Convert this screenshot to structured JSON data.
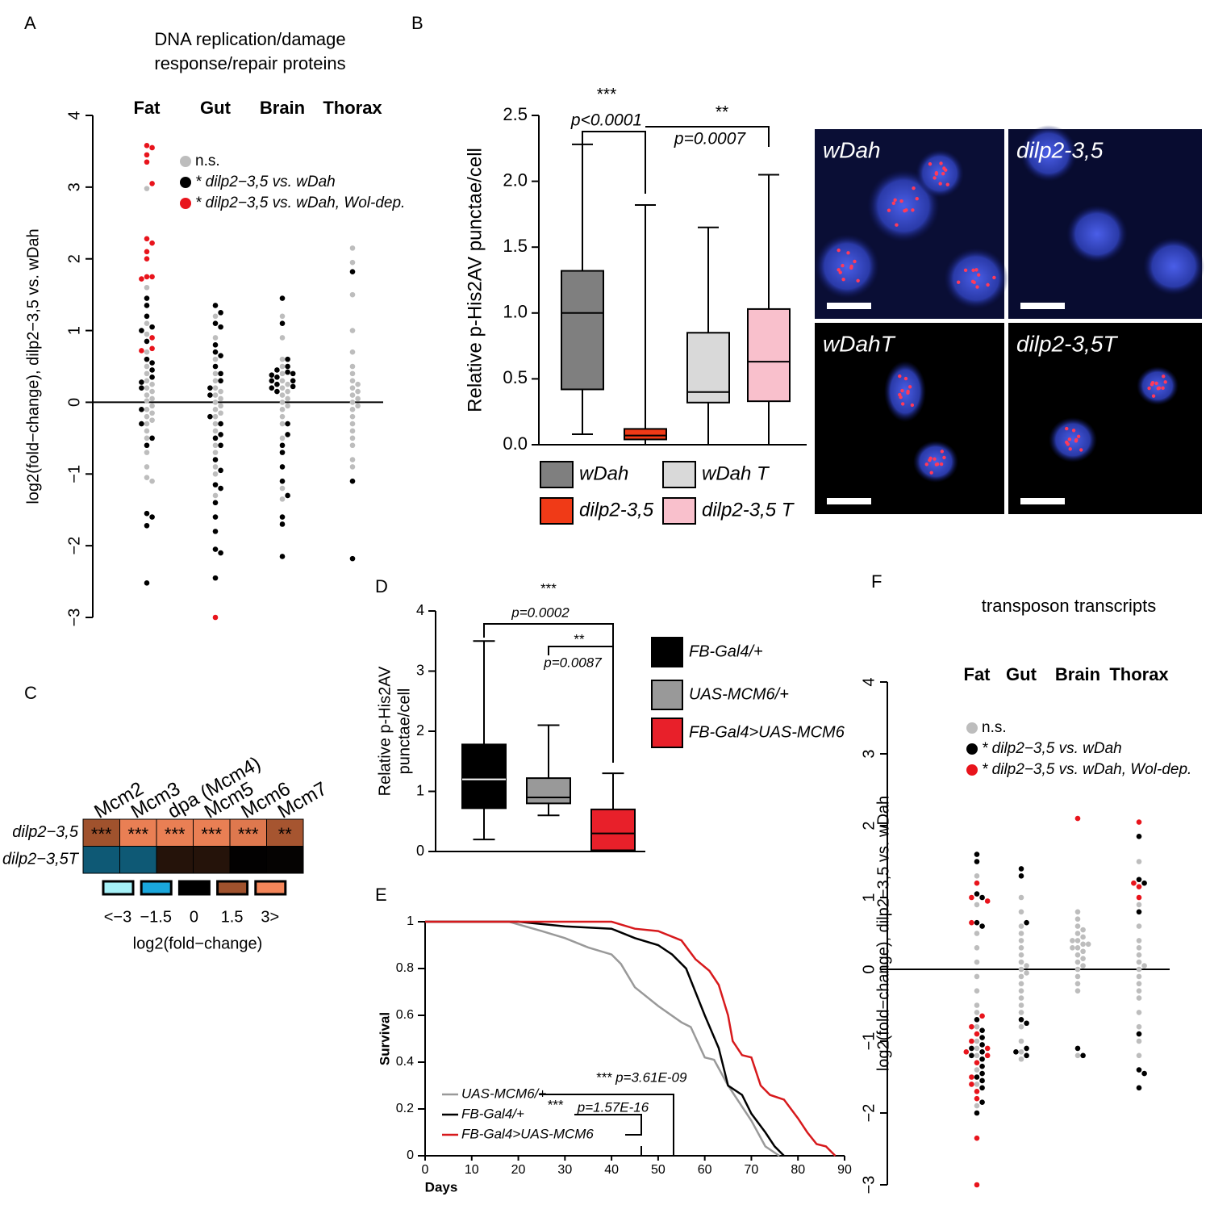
{
  "chart_data": [
    {
      "type": "beeswarm",
      "panel": "A",
      "title": [
        "DNA replication/damage",
        "response/repair proteins"
      ],
      "y_label": "log2(fold−change), dilp2−3,5 vs. wDah",
      "categories": [
        "Fat",
        "Gut",
        "Brain",
        "Thorax"
      ],
      "series": [
        {
          "name": "n.s.",
          "color": "#bdbdbd",
          "values": [
            [
              2.98,
              1.6,
              1.1,
              0.95,
              0.7,
              0.5,
              0.4,
              0.3,
              0.25,
              0.2,
              0.15,
              0.1,
              0.05,
              0.02,
              -0.05,
              -0.1,
              -0.15,
              -0.2,
              -0.25,
              -0.3,
              -0.4,
              -0.5,
              -0.7,
              -0.9,
              -1.05,
              -1.1
            ],
            [
              1.2,
              0.9,
              0.6,
              0.4,
              0.3,
              0.2,
              0.15,
              0.1,
              0.05,
              0,
              -0.05,
              -0.1,
              -0.15,
              -0.2,
              -0.3,
              -0.4,
              -0.6,
              -0.7,
              -0.9,
              -1.0,
              -1.3
            ],
            [
              1.2,
              0.9,
              0.6,
              0.5,
              0.4,
              0.3,
              0.25,
              0.2,
              0.15,
              0.1,
              0.05,
              0,
              -0.05,
              -0.1,
              -0.2,
              -0.3,
              -0.5,
              -1.2,
              -1.35
            ],
            [
              2.15,
              1.95,
              1.5,
              1.0,
              0.7,
              0.5,
              0.4,
              0.3,
              0.25,
              0.2,
              0.15,
              0.1,
              0.05,
              0,
              -0.05,
              -0.1,
              -0.2,
              -0.3,
              -0.4,
              -0.5,
              -0.6,
              -0.8,
              -0.9
            ]
          ]
        },
        {
          "name": "* dilp2−3,5 vs. wDah",
          "color": "#000000",
          "values": [
            [
              1.45,
              1.35,
              1.2,
              1.05,
              1.0,
              0.85,
              0.6,
              0.55,
              0.45,
              0.35,
              0.28,
              0.2,
              -0.1,
              -0.3,
              -0.5,
              -0.6,
              -1.55,
              -1.6,
              -1.72,
              -2.52
            ],
            [
              1.35,
              1.25,
              1.1,
              1.05,
              0.8,
              0.7,
              0.65,
              0.5,
              0.4,
              0.3,
              0.2,
              0.1,
              -0.2,
              -0.3,
              -0.45,
              -0.5,
              -0.6,
              -0.8,
              -0.95,
              -1.15,
              -1.2,
              -1.4,
              -1.6,
              -1.8,
              -2.05,
              -2.1,
              -2.45
            ],
            [
              1.45,
              1.1,
              0.6,
              0.5,
              0.45,
              0.42,
              0.4,
              0.38,
              0.35,
              0.3,
              0.3,
              0.25,
              0.22,
              0.2,
              0.15,
              -0.3,
              -0.45,
              -0.6,
              -0.7,
              -0.9,
              -1.1,
              -1.3,
              -1.6,
              -1.7,
              -2.15
            ],
            [
              1.82,
              -1.1,
              -2.18
            ]
          ]
        },
        {
          "name": "* dilp2−3,5 vs. wDah, Wol-dep.",
          "color": "#e8141c",
          "values": [
            [
              3.58,
              3.55,
              3.45,
              3.35,
              3.05,
              2.28,
              2.22,
              2.1,
              2.0,
              1.75,
              1.75,
              1.72,
              0.9,
              0.75,
              0.72
            ],
            [
              -3.0
            ],
            [],
            []
          ]
        }
      ],
      "ylim": [
        -3,
        4
      ],
      "yticks": [
        {
          "value": -3,
          "label": "−3"
        },
        {
          "value": -2,
          "label": "−2"
        },
        {
          "value": -1,
          "label": "−1"
        },
        0,
        1,
        2,
        3,
        4
      ]
    },
    {
      "type": "box",
      "panel": "B",
      "y_label": "Relative p-His2AV punctae/cell",
      "categories": [
        "wDah",
        "dilp2-3,5",
        "wDah T",
        "dilp2-3,5 T"
      ],
      "colors": [
        "#7f7f7f",
        "#f03a17",
        "#d9d9d9",
        "#f9c0cc"
      ],
      "min": [
        0.08,
        0.0,
        0.0,
        0.0
      ],
      "q1": [
        0.42,
        0.04,
        0.32,
        0.33
      ],
      "median": [
        1.0,
        0.07,
        0.4,
        0.63
      ],
      "q3": [
        1.32,
        0.12,
        0.85,
        1.03
      ],
      "max": [
        2.28,
        1.82,
        1.65,
        2.05
      ],
      "ylim": [
        0,
        2.5
      ],
      "yticks": [
        {
          "value": 0,
          "label": "0.0"
        },
        0.5,
        {
          "value": 1,
          "label": "1.0"
        },
        1.5,
        {
          "value": 2,
          "label": "2.0"
        },
        2.5
      ],
      "annotations": [
        "***",
        "p<0.0001",
        "**",
        "p=0.0007"
      ],
      "image_labels": [
        "wDah",
        "dilp2-3,5",
        "wDahT",
        "dilp2-3,5T"
      ]
    },
    {
      "type": "heatmap",
      "panel": "C",
      "columns": [
        "Mcm2",
        "Mcm3",
        "dpa (Mcm4)",
        "Mcm5",
        "Mcm6",
        "Mcm7"
      ],
      "rows": [
        "dilp2−3,5",
        "dilp2−3,5T"
      ],
      "values": [
        [
          1.5,
          2.8,
          2.8,
          2.8,
          2.6,
          1.6
        ],
        [
          -0.8,
          -0.8,
          0.35,
          0.35,
          0.02,
          0.05
        ]
      ],
      "cell_labels": [
        "***",
        "***",
        "***",
        "***",
        "***",
        "**"
      ],
      "legend_ticks": [
        {
          "value": -3,
          "label": "<−3"
        },
        {
          "value": -1.5,
          "label": "−1.5"
        },
        0,
        1.5,
        {
          "value": 3,
          "label": "3>"
        }
      ],
      "colors": [
        "#a6f1f7",
        "#1aa7dc",
        "#000000",
        "#a0522d",
        "#f4865a"
      ],
      "legend_title": "log2(fold−change)"
    },
    {
      "type": "box",
      "panel": "D",
      "y_label": [
        "Relative p-His2AV",
        "punctae/cell"
      ],
      "categories": [
        "FB-Gal4/+",
        "UAS-MCM6/+",
        "FB-Gal4>UAS-MCM6"
      ],
      "colors": [
        "#000000",
        "#999999",
        "#e8202a"
      ],
      "min": [
        0.2,
        0.6,
        0.0
      ],
      "q1": [
        0.72,
        0.8,
        0.02
      ],
      "median": [
        1.2,
        0.9,
        0.3
      ],
      "q3": [
        1.78,
        1.22,
        0.7
      ],
      "max": [
        3.5,
        2.1,
        1.3
      ],
      "ylim": [
        0,
        4
      ],
      "yticks": [
        0,
        1,
        2,
        3,
        4
      ],
      "annotations": [
        "***",
        "p=0.0002",
        "**",
        "p=0.0087"
      ]
    },
    {
      "type": "line",
      "panel": "E",
      "x_label": "Days",
      "y_label": "Survival",
      "series": [
        {
          "name": "UAS-MCM6/+",
          "color": "#999999",
          "x": [
            0,
            18,
            25,
            30,
            35,
            40,
            42,
            45,
            50,
            55,
            57,
            60,
            62,
            65,
            70,
            73,
            76
          ],
          "y": [
            1,
            1,
            0.96,
            0.93,
            0.89,
            0.86,
            0.82,
            0.72,
            0.64,
            0.57,
            0.55,
            0.42,
            0.41,
            0.3,
            0.15,
            0.04,
            0
          ]
        },
        {
          "name": "FB-Gal4/+",
          "color": "#000000",
          "x": [
            0,
            20,
            30,
            40,
            45,
            50,
            53,
            56,
            60,
            63,
            65,
            68,
            70,
            73,
            75,
            77
          ],
          "y": [
            1,
            1,
            0.98,
            0.97,
            0.93,
            0.9,
            0.86,
            0.8,
            0.6,
            0.46,
            0.3,
            0.26,
            0.18,
            0.1,
            0.04,
            0
          ]
        },
        {
          "name": "FB-Gal4>UAS-MCM6",
          "color": "#d7191c",
          "x": [
            0,
            40,
            45,
            50,
            55,
            58,
            61,
            63,
            65,
            66,
            68,
            70,
            72,
            74,
            77,
            80,
            82,
            84,
            86,
            88
          ],
          "y": [
            1,
            1,
            0.97,
            0.96,
            0.92,
            0.84,
            0.79,
            0.73,
            0.6,
            0.49,
            0.43,
            0.42,
            0.3,
            0.26,
            0.24,
            0.16,
            0.1,
            0.05,
            0.04,
            0
          ]
        }
      ],
      "xlim": [
        0,
        90
      ],
      "xticks": [
        0,
        10,
        20,
        30,
        40,
        50,
        60,
        70,
        80,
        90
      ],
      "ylim": [
        0,
        1
      ],
      "yticks": [
        0,
        0.2,
        0.4,
        0.6,
        0.8,
        1
      ],
      "annotations": [
        "*** p=3.61E-09",
        "***",
        "p=1.57E-16"
      ]
    },
    {
      "type": "beeswarm",
      "panel": "F",
      "title": [
        "transposon transcripts"
      ],
      "y_label": "log2(fold−change), dilp2−3,5 vs. wDah",
      "categories": [
        "Fat",
        "Gut",
        "Brain",
        "Thorax"
      ],
      "series": [
        {
          "name": "n.s.",
          "color": "#bdbdbd",
          "values": [
            [
              1.3,
              0.9,
              0.5,
              0.3,
              0.1,
              -0.1,
              -0.3,
              -0.5,
              -0.6,
              -0.8,
              -1.0,
              -1.1,
              -1.2,
              -1.4,
              -1.6,
              -1.9
            ],
            [
              1.0,
              0.8,
              0.6,
              0.5,
              0.4,
              0.3,
              0.2,
              0.1,
              0.05,
              0,
              -0.05,
              -0.1,
              -0.2,
              -0.3,
              -0.4,
              -0.5,
              -0.6,
              -0.8,
              -1.0,
              -1.15,
              -1.25
            ],
            [
              0.8,
              0.7,
              0.6,
              0.55,
              0.5,
              0.45,
              0.4,
              0.4,
              0.35,
              0.35,
              0.3,
              0.3,
              0.25,
              0.2,
              0.15,
              0.1,
              0.05,
              0,
              -0.1,
              -0.2,
              -0.3,
              -1.2
            ],
            [
              1.5,
              0.9,
              0.6,
              0.4,
              0.3,
              0.2,
              0.1,
              0.05,
              0,
              -0.1,
              -0.2,
              -0.3,
              -0.4,
              -0.6,
              -0.8,
              -1.0,
              -1.2
            ]
          ]
        },
        {
          "name": "* dilp2−3,5 vs. wDah",
          "color": "#000000",
          "values": [
            [
              1.6,
              1.5,
              1.05,
              1.0,
              0.65,
              0.6,
              -0.7,
              -0.85,
              -0.95,
              -1.05,
              -1.1,
              -1.15,
              -1.2,
              -1.25,
              -1.35,
              -1.45,
              -1.5,
              -1.55,
              -1.65,
              -1.85,
              -2.0
            ],
            [
              1.4,
              1.3,
              0.65,
              -0.7,
              -0.75,
              -1.1,
              -1.15,
              -1.2
            ],
            [
              -1.1,
              -1.2
            ],
            [
              1.85,
              1.25,
              1.2,
              0.8,
              -0.9,
              -1.4,
              -1.45,
              -1.65
            ]
          ]
        },
        {
          "name": "* dilp2−3,5 vs. wDah, Wol-dep.",
          "color": "#e8141c",
          "values": [
            [
              1.2,
              1.0,
              0.95,
              0.65,
              -0.65,
              -0.8,
              -0.9,
              -1.0,
              -1.1,
              -1.15,
              -1.2,
              -1.3,
              -1.5,
              -1.6,
              -1.7,
              -1.8,
              -2.35,
              -3.0
            ],
            [],
            [
              2.1
            ],
            [
              2.05,
              1.2,
              1.15,
              1.0
            ]
          ]
        }
      ],
      "ylim": [
        -3,
        4
      ],
      "yticks": [
        {
          "value": -3,
          "label": "−3"
        },
        {
          "value": -2,
          "label": "−2"
        },
        {
          "value": -1,
          "label": "−1"
        },
        0,
        1,
        2,
        3,
        4
      ]
    }
  ]
}
